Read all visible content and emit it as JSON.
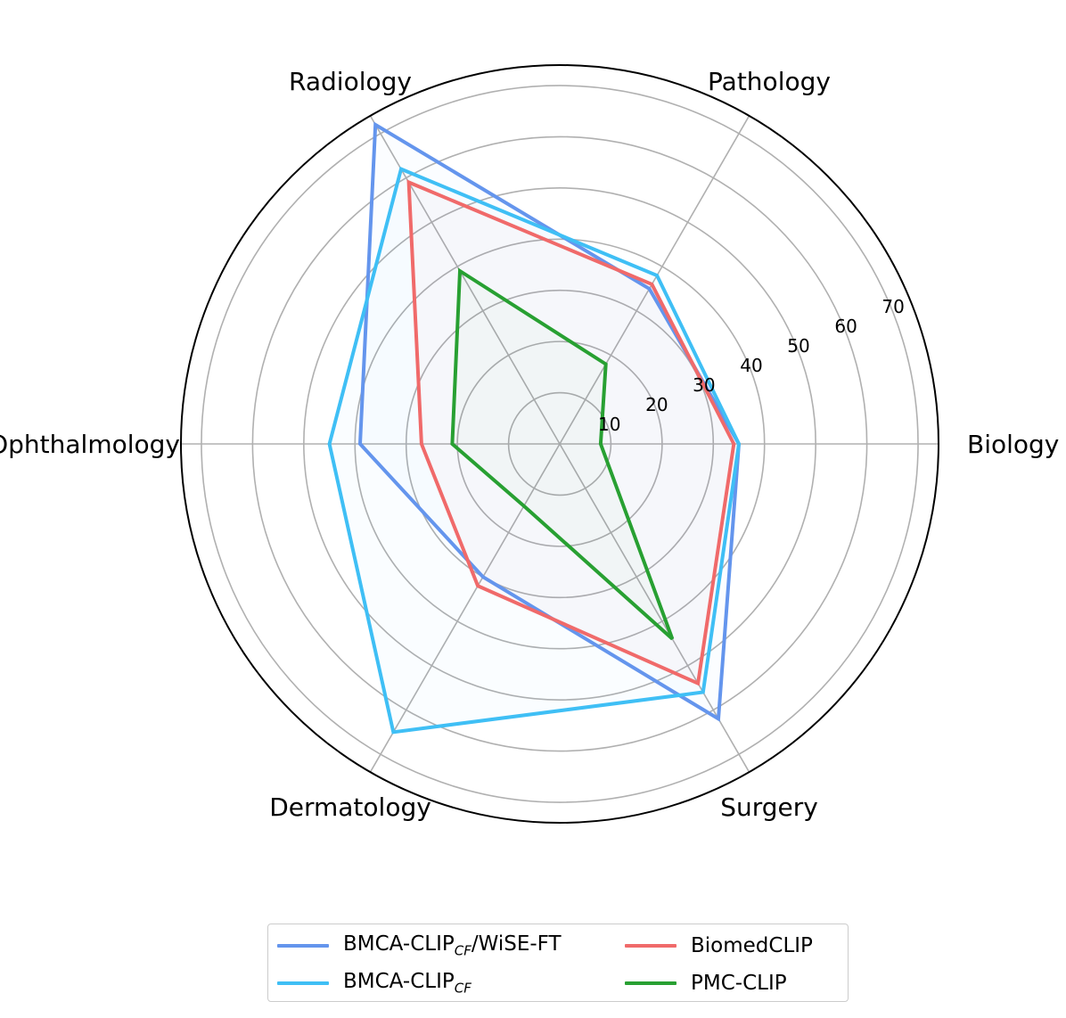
{
  "chart_data": {
    "type": "radar",
    "categories": [
      "Biology",
      "Pathology",
      "Radiology",
      "Ophthalmology",
      "Dermatology",
      "Surgery"
    ],
    "r_ticks": [
      10,
      20,
      30,
      40,
      50,
      60,
      70
    ],
    "r_tick_labels": [
      "10",
      "20",
      "30",
      "40",
      "50",
      "60",
      "70"
    ],
    "rlim": [
      0,
      74
    ],
    "grid": true,
    "legend_position": "bottom",
    "series": [
      {
        "name": "BMCA-CLIP",
        "name_sub": "CF",
        "name_suffix": "/WiSE-FT",
        "color": "#6495ed",
        "values": [
          35,
          35,
          72,
          39,
          30,
          62
        ]
      },
      {
        "name": "BMCA-CLIP",
        "name_sub": "CF",
        "name_suffix": "",
        "color": "#3fbff5",
        "values": [
          35,
          38,
          62,
          45,
          65,
          56
        ]
      },
      {
        "name": "BiomedCLIP",
        "name_sub": "",
        "name_suffix": "",
        "color": "#f06a6a",
        "values": [
          34,
          36,
          59,
          27,
          32,
          54
        ]
      },
      {
        "name": "PMC-CLIP",
        "name_sub": "",
        "name_suffix": "",
        "color": "#28a032",
        "values": [
          8,
          18,
          39,
          21,
          14,
          44
        ]
      }
    ]
  }
}
